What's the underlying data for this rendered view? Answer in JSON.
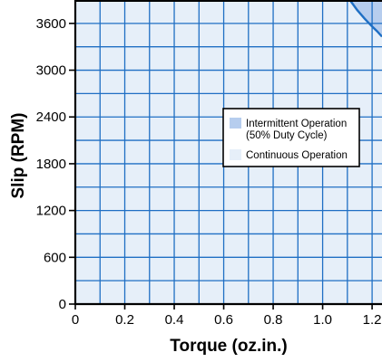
{
  "chart_data": {
    "type": "area",
    "xlabel": "Torque (oz.in.)",
    "ylabel": "Slip (RPM)",
    "xlim": [
      0,
      1.24
    ],
    "ylim": [
      0,
      3900
    ],
    "x_ticks": [
      {
        "value": 0,
        "label": "0"
      },
      {
        "value": 0.2,
        "label": "0.2"
      },
      {
        "value": 0.4,
        "label": "0.4"
      },
      {
        "value": 0.6,
        "label": "0.6"
      },
      {
        "value": 0.8,
        "label": "0.8"
      },
      {
        "value": 1.0,
        "label": "1.0"
      },
      {
        "value": 1.2,
        "label": "1.2"
      }
    ],
    "y_ticks": [
      {
        "value": 0,
        "label": "0"
      },
      {
        "value": 600,
        "label": "600"
      },
      {
        "value": 1200,
        "label": "1200"
      },
      {
        "value": 1800,
        "label": "1800"
      },
      {
        "value": 2400,
        "label": "2400"
      },
      {
        "value": 3000,
        "label": "3000"
      },
      {
        "value": 3600,
        "label": "3600"
      }
    ],
    "x_grid_step": 0.1,
    "y_grid_step": 300,
    "grid": true,
    "legend_position": "right",
    "series": [
      {
        "name": "Intermittent Operation (50% Duty Cycle)",
        "legend_lines": [
          "Intermittent Operation",
          "(50% Duty Cycle)"
        ],
        "color": "#b6cdee",
        "boundary": [
          {
            "x": 1.11,
            "y": 3900
          },
          {
            "x": 1.14,
            "y": 3770
          },
          {
            "x": 1.17,
            "y": 3660
          },
          {
            "x": 1.2,
            "y": 3560
          },
          {
            "x": 1.22,
            "y": 3500
          },
          {
            "x": 1.24,
            "y": 3430
          }
        ]
      },
      {
        "name": "Continuous Operation",
        "legend_lines": [
          "Continuous Operation"
        ],
        "color": "#e6eff9"
      }
    ],
    "colors": {
      "grid": "#1f6fc4",
      "boundary": "#1f6fc4",
      "axis": "#000000"
    }
  }
}
